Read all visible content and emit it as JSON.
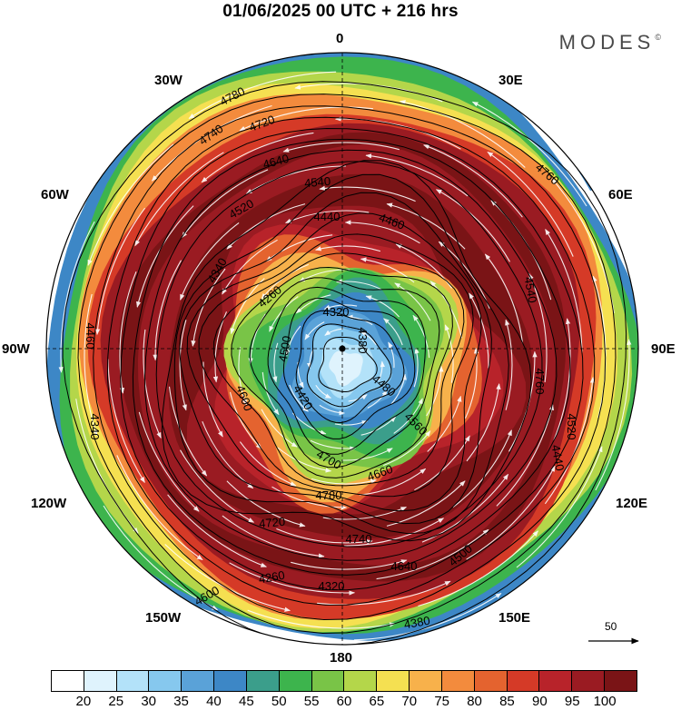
{
  "title": "01/06/2025  00 UTC  + 216 hrs",
  "brand": "MODES",
  "brand_mark": "©",
  "meridian_labels": {
    "top": "0",
    "bottom": "180",
    "left": "90W",
    "right": "90E",
    "n30w": "30W",
    "n30e": "30E",
    "w60": "60W",
    "e60": "60E",
    "w120": "120W",
    "e120": "120E",
    "w150": "150W",
    "e150": "150E"
  },
  "contour_labels": [
    "4780",
    "4720",
    "4740",
    "4640",
    "4540",
    "4760",
    "4520",
    "4440",
    "4460",
    "4340",
    "4260",
    "4320",
    "4380",
    "4500",
    "4600",
    "4420",
    "4480",
    "4560",
    "4700",
    "4660"
  ],
  "reference_vector": "50",
  "colorbar": {
    "colors": [
      "#ffffff",
      "#dff3fd",
      "#b3e2f9",
      "#86c8ee",
      "#5aa2d8",
      "#3d87c6",
      "#3b9e8b",
      "#3db44d",
      "#79c447",
      "#b4d64a",
      "#f5e051",
      "#f7b14b",
      "#f38b3d",
      "#e4632f",
      "#d53a27",
      "#b8232a",
      "#9a1b22",
      "#7a1416"
    ],
    "tick_labels": [
      "20",
      "25",
      "30",
      "35",
      "40",
      "45",
      "50",
      "55",
      "60",
      "65",
      "70",
      "75",
      "80",
      "85",
      "90",
      "95",
      "100"
    ]
  }
}
